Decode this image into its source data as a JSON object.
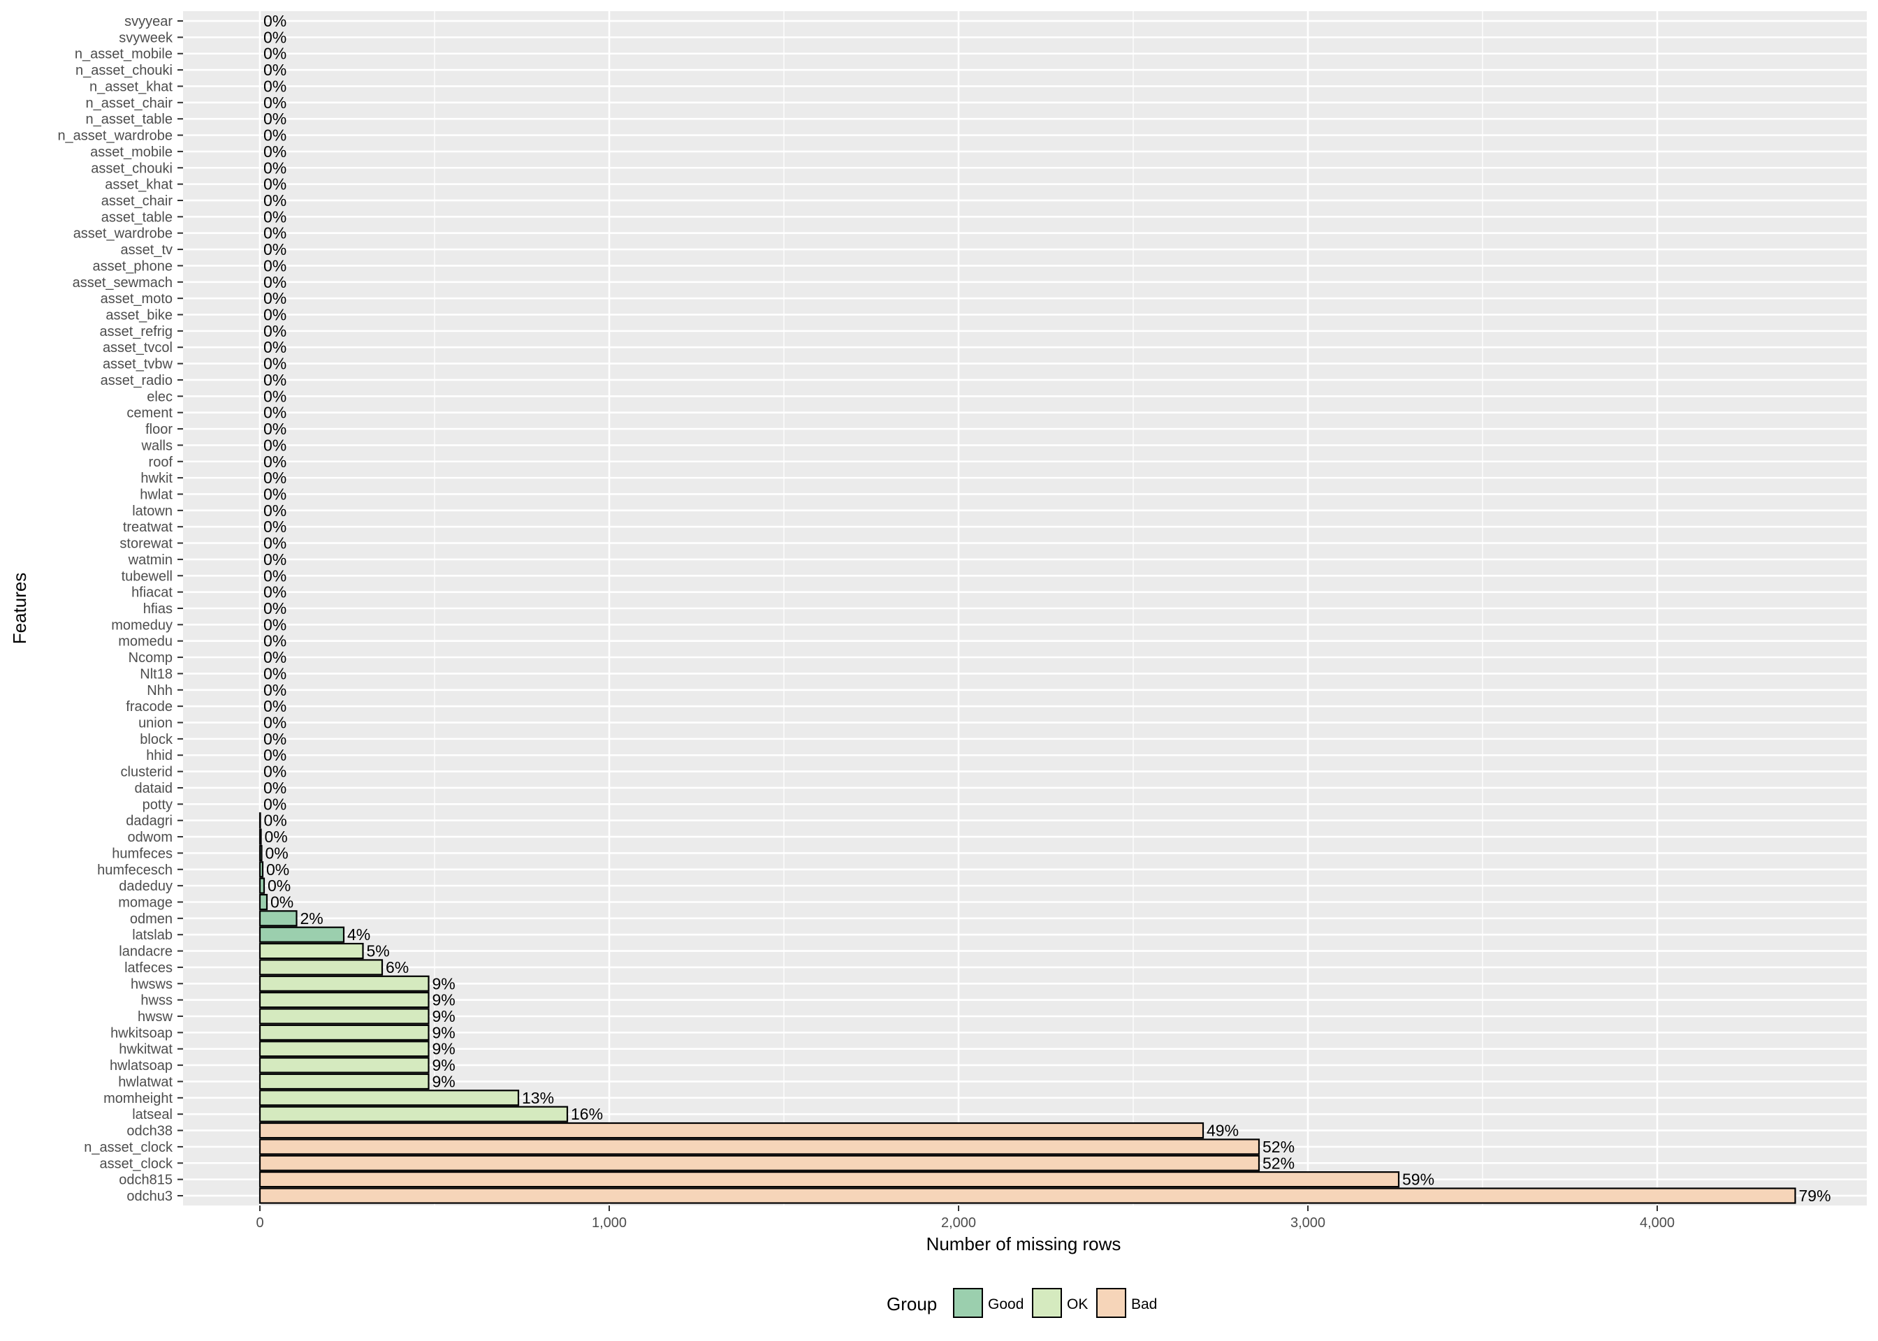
{
  "chart_data": {
    "type": "bar",
    "orientation": "horizontal",
    "xlabel": "Number of missing rows",
    "ylabel": "Features",
    "xlim": [
      -220,
      4600
    ],
    "x_ticks": [
      0,
      1000,
      2000,
      3000,
      4000
    ],
    "x_tick_labels": [
      "0",
      "1,000",
      "2,000",
      "3,000",
      "4,000"
    ],
    "grid": true,
    "legend": {
      "title": "Group",
      "position": "bottom",
      "entries": [
        {
          "name": "Good",
          "color": "#9bcfae"
        },
        {
          "name": "OK",
          "color": "#d5eabf"
        },
        {
          "name": "Bad",
          "color": "#f6d5b9"
        }
      ]
    },
    "colors": {
      "Good": "#9bcfae",
      "OK": "#d5eabf",
      "Bad": "#f6d5b9",
      "panel": "#ebebeb",
      "grid": "#ffffff",
      "bar_border": "#000000"
    },
    "features": [
      {
        "name": "svyyear",
        "value": 0,
        "label": "0%",
        "group": "Good"
      },
      {
        "name": "svyweek",
        "value": 0,
        "label": "0%",
        "group": "Good"
      },
      {
        "name": "n_asset_mobile",
        "value": 0,
        "label": "0%",
        "group": "Good"
      },
      {
        "name": "n_asset_chouki",
        "value": 0,
        "label": "0%",
        "group": "Good"
      },
      {
        "name": "n_asset_khat",
        "value": 0,
        "label": "0%",
        "group": "Good"
      },
      {
        "name": "n_asset_chair",
        "value": 0,
        "label": "0%",
        "group": "Good"
      },
      {
        "name": "n_asset_table",
        "value": 0,
        "label": "0%",
        "group": "Good"
      },
      {
        "name": "n_asset_wardrobe",
        "value": 0,
        "label": "0%",
        "group": "Good"
      },
      {
        "name": "asset_mobile",
        "value": 0,
        "label": "0%",
        "group": "Good"
      },
      {
        "name": "asset_chouki",
        "value": 0,
        "label": "0%",
        "group": "Good"
      },
      {
        "name": "asset_khat",
        "value": 0,
        "label": "0%",
        "group": "Good"
      },
      {
        "name": "asset_chair",
        "value": 0,
        "label": "0%",
        "group": "Good"
      },
      {
        "name": "asset_table",
        "value": 0,
        "label": "0%",
        "group": "Good"
      },
      {
        "name": "asset_wardrobe",
        "value": 0,
        "label": "0%",
        "group": "Good"
      },
      {
        "name": "asset_tv",
        "value": 0,
        "label": "0%",
        "group": "Good"
      },
      {
        "name": "asset_phone",
        "value": 0,
        "label": "0%",
        "group": "Good"
      },
      {
        "name": "asset_sewmach",
        "value": 0,
        "label": "0%",
        "group": "Good"
      },
      {
        "name": "asset_moto",
        "value": 0,
        "label": "0%",
        "group": "Good"
      },
      {
        "name": "asset_bike",
        "value": 0,
        "label": "0%",
        "group": "Good"
      },
      {
        "name": "asset_refrig",
        "value": 0,
        "label": "0%",
        "group": "Good"
      },
      {
        "name": "asset_tvcol",
        "value": 0,
        "label": "0%",
        "group": "Good"
      },
      {
        "name": "asset_tvbw",
        "value": 0,
        "label": "0%",
        "group": "Good"
      },
      {
        "name": "asset_radio",
        "value": 0,
        "label": "0%",
        "group": "Good"
      },
      {
        "name": "elec",
        "value": 0,
        "label": "0%",
        "group": "Good"
      },
      {
        "name": "cement",
        "value": 0,
        "label": "0%",
        "group": "Good"
      },
      {
        "name": "floor",
        "value": 0,
        "label": "0%",
        "group": "Good"
      },
      {
        "name": "walls",
        "value": 0,
        "label": "0%",
        "group": "Good"
      },
      {
        "name": "roof",
        "value": 0,
        "label": "0%",
        "group": "Good"
      },
      {
        "name": "hwkit",
        "value": 0,
        "label": "0%",
        "group": "Good"
      },
      {
        "name": "hwlat",
        "value": 0,
        "label": "0%",
        "group": "Good"
      },
      {
        "name": "latown",
        "value": 0,
        "label": "0%",
        "group": "Good"
      },
      {
        "name": "treatwat",
        "value": 0,
        "label": "0%",
        "group": "Good"
      },
      {
        "name": "storewat",
        "value": 0,
        "label": "0%",
        "group": "Good"
      },
      {
        "name": "watmin",
        "value": 0,
        "label": "0%",
        "group": "Good"
      },
      {
        "name": "tubewell",
        "value": 0,
        "label": "0%",
        "group": "Good"
      },
      {
        "name": "hfiacat",
        "value": 0,
        "label": "0%",
        "group": "Good"
      },
      {
        "name": "hfias",
        "value": 0,
        "label": "0%",
        "group": "Good"
      },
      {
        "name": "momeduy",
        "value": 0,
        "label": "0%",
        "group": "Good"
      },
      {
        "name": "momedu",
        "value": 0,
        "label": "0%",
        "group": "Good"
      },
      {
        "name": "Ncomp",
        "value": 0,
        "label": "0%",
        "group": "Good"
      },
      {
        "name": "Nlt18",
        "value": 0,
        "label": "0%",
        "group": "Good"
      },
      {
        "name": "Nhh",
        "value": 0,
        "label": "0%",
        "group": "Good"
      },
      {
        "name": "fracode",
        "value": 0,
        "label": "0%",
        "group": "Good"
      },
      {
        "name": "union",
        "value": 0,
        "label": "0%",
        "group": "Good"
      },
      {
        "name": "block",
        "value": 0,
        "label": "0%",
        "group": "Good"
      },
      {
        "name": "hhid",
        "value": 0,
        "label": "0%",
        "group": "Good"
      },
      {
        "name": "clusterid",
        "value": 0,
        "label": "0%",
        "group": "Good"
      },
      {
        "name": "dataid",
        "value": 0,
        "label": "0%",
        "group": "Good"
      },
      {
        "name": "potty",
        "value": 0,
        "label": "0%",
        "group": "Good"
      },
      {
        "name": "dadagri",
        "value": 1,
        "label": "0%",
        "group": "Good"
      },
      {
        "name": "odwom",
        "value": 3,
        "label": "0%",
        "group": "Good"
      },
      {
        "name": "humfeces",
        "value": 5,
        "label": "0%",
        "group": "Good"
      },
      {
        "name": "humfecesch",
        "value": 8,
        "label": "0%",
        "group": "Good"
      },
      {
        "name": "dadeduy",
        "value": 12,
        "label": "0%",
        "group": "Good"
      },
      {
        "name": "momage",
        "value": 20,
        "label": "0%",
        "group": "Good"
      },
      {
        "name": "odmen",
        "value": 105,
        "label": "2%",
        "group": "Good"
      },
      {
        "name": "latslab",
        "value": 240,
        "label": "4%",
        "group": "Good"
      },
      {
        "name": "landacre",
        "value": 295,
        "label": "5%",
        "group": "OK"
      },
      {
        "name": "latfeces",
        "value": 350,
        "label": "6%",
        "group": "OK"
      },
      {
        "name": "hwsws",
        "value": 483,
        "label": "9%",
        "group": "OK"
      },
      {
        "name": "hwss",
        "value": 483,
        "label": "9%",
        "group": "OK"
      },
      {
        "name": "hwsw",
        "value": 483,
        "label": "9%",
        "group": "OK"
      },
      {
        "name": "hwkitsoap",
        "value": 483,
        "label": "9%",
        "group": "OK"
      },
      {
        "name": "hwkitwat",
        "value": 483,
        "label": "9%",
        "group": "OK"
      },
      {
        "name": "hwlatsoap",
        "value": 483,
        "label": "9%",
        "group": "OK"
      },
      {
        "name": "hwlatwat",
        "value": 483,
        "label": "9%",
        "group": "OK"
      },
      {
        "name": "momheight",
        "value": 740,
        "label": "13%",
        "group": "OK"
      },
      {
        "name": "latseal",
        "value": 880,
        "label": "16%",
        "group": "OK"
      },
      {
        "name": "odch38",
        "value": 2700,
        "label": "49%",
        "group": "Bad"
      },
      {
        "name": "n_asset_clock",
        "value": 2860,
        "label": "52%",
        "group": "Bad"
      },
      {
        "name": "asset_clock",
        "value": 2860,
        "label": "52%",
        "group": "Bad"
      },
      {
        "name": "odch815",
        "value": 3260,
        "label": "59%",
        "group": "Bad"
      },
      {
        "name": "odchu3",
        "value": 4395,
        "label": "79%",
        "group": "Bad"
      }
    ]
  }
}
